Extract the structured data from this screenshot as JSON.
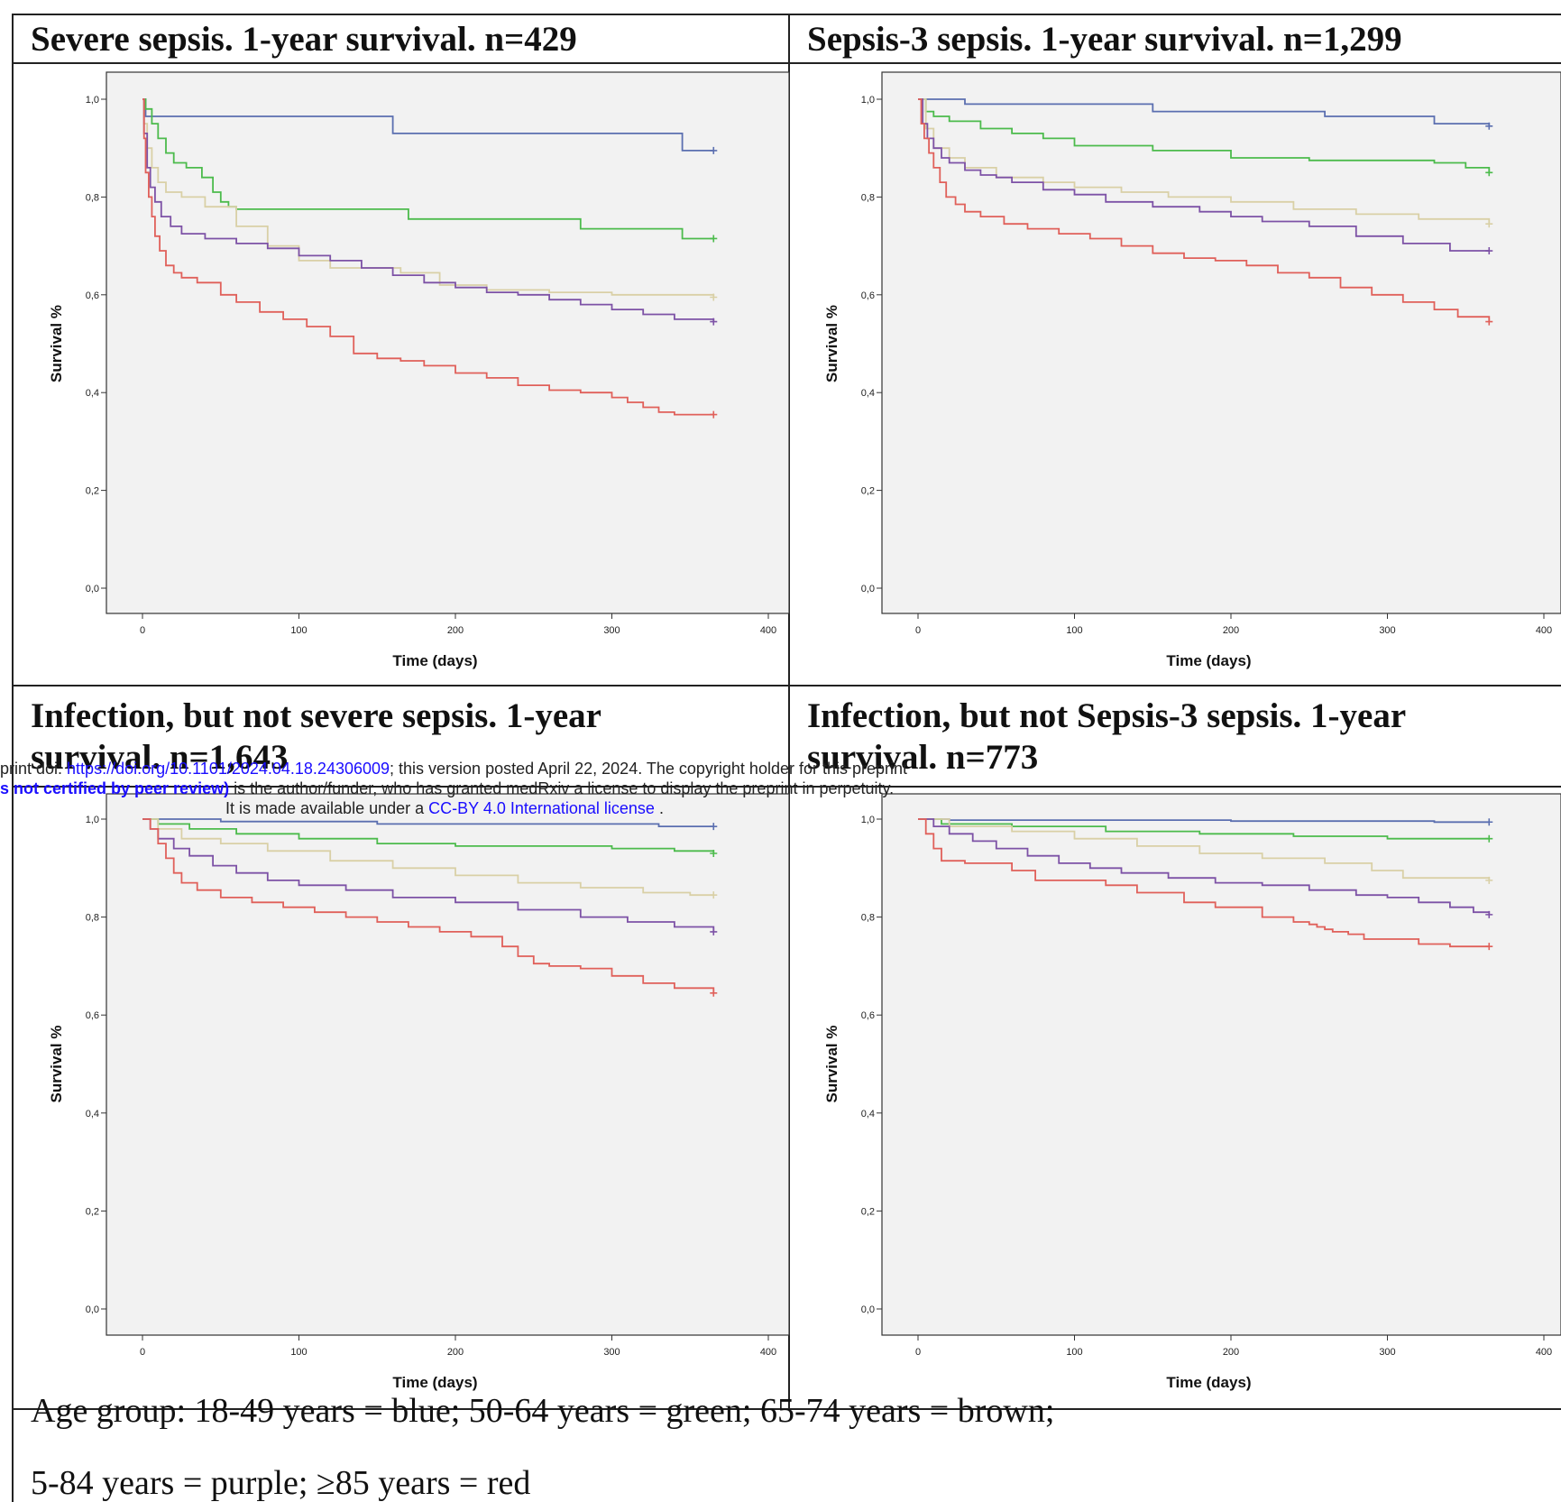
{
  "colors": {
    "blue": "#5b6fb0",
    "green": "#4cbb4c",
    "brown": "#d9d0a6",
    "purple": "#7d52a6",
    "red": "#e0605a",
    "panel_bg": "#f2f2f2"
  },
  "caption": {
    "line1": "Age group: 18-49 years = blue; 50-64 years = green; 65-74 years = brown;",
    "line2": "5-84 years = purple; ≥85 years = red"
  },
  "preprint_notice": {
    "line1_prefix": "print doi: ",
    "doi_link": "https://doi.org/10.1101/2024.04.18.24306009",
    "line1_suffix": "; this version posted April 22, 2024. The copyright holder for this preprint",
    "line2_bold": "s not certified by peer review)",
    "line2_suffix": " is the author/funder, who has granted medRxiv a license to display the preprint in perpetuity.",
    "line3_prefix": "It is made available under a ",
    "license_link": "CC-BY 4.0 International license",
    "line3_suffix": " ."
  },
  "chart_data": [
    {
      "type": "line",
      "title": "Severe sepsis. 1-year survival. n=429",
      "xlabel": "Time (days)",
      "ylabel": "Survival %",
      "xlim": [
        0,
        400
      ],
      "ylim": [
        0,
        1
      ],
      "xticks": [
        "0",
        "100",
        "200",
        "300",
        "400"
      ],
      "yticks": [
        "0,0",
        "0,2",
        "0,4",
        "0,6",
        "0,8",
        "1,0"
      ],
      "step": true,
      "series": [
        {
          "color": "blue",
          "x": [
            0,
            2,
            160,
            345,
            365
          ],
          "y": [
            1.0,
            0.965,
            0.93,
            0.895,
            0.895
          ]
        },
        {
          "color": "green",
          "x": [
            0,
            2,
            6,
            10,
            15,
            20,
            28,
            38,
            45,
            50,
            55,
            60,
            170,
            280,
            345,
            365
          ],
          "y": [
            1.0,
            0.98,
            0.95,
            0.92,
            0.89,
            0.87,
            0.86,
            0.84,
            0.81,
            0.79,
            0.78,
            0.775,
            0.755,
            0.735,
            0.715,
            0.715
          ]
        },
        {
          "color": "brown",
          "x": [
            0,
            1,
            3,
            6,
            10,
            15,
            25,
            40,
            60,
            80,
            100,
            120,
            140,
            165,
            190,
            220,
            260,
            300,
            365
          ],
          "y": [
            1.0,
            0.95,
            0.9,
            0.86,
            0.83,
            0.81,
            0.8,
            0.78,
            0.74,
            0.7,
            0.67,
            0.655,
            0.655,
            0.645,
            0.62,
            0.61,
            0.605,
            0.6,
            0.595
          ]
        },
        {
          "color": "purple",
          "x": [
            0,
            1,
            3,
            5,
            8,
            12,
            18,
            25,
            40,
            60,
            80,
            100,
            120,
            140,
            160,
            180,
            200,
            220,
            240,
            260,
            280,
            300,
            320,
            340,
            365
          ],
          "y": [
            1.0,
            0.93,
            0.86,
            0.82,
            0.79,
            0.76,
            0.74,
            0.725,
            0.715,
            0.705,
            0.695,
            0.68,
            0.67,
            0.655,
            0.64,
            0.625,
            0.615,
            0.605,
            0.6,
            0.59,
            0.58,
            0.57,
            0.56,
            0.55,
            0.545
          ]
        },
        {
          "color": "red",
          "x": [
            0,
            1,
            2,
            4,
            6,
            8,
            11,
            15,
            20,
            25,
            35,
            50,
            60,
            75,
            90,
            105,
            120,
            135,
            150,
            165,
            180,
            200,
            220,
            240,
            260,
            280,
            300,
            310,
            320,
            330,
            340,
            365
          ],
          "y": [
            1.0,
            0.92,
            0.85,
            0.8,
            0.76,
            0.72,
            0.69,
            0.66,
            0.645,
            0.635,
            0.625,
            0.6,
            0.585,
            0.565,
            0.55,
            0.535,
            0.515,
            0.48,
            0.47,
            0.465,
            0.455,
            0.44,
            0.43,
            0.415,
            0.405,
            0.4,
            0.39,
            0.38,
            0.37,
            0.36,
            0.355,
            0.355
          ]
        }
      ]
    },
    {
      "type": "line",
      "title": "Sepsis-3 sepsis. 1-year survival. n=1,299",
      "xlabel": "Time (days)",
      "ylabel": "Survival %",
      "xlim": [
        0,
        400
      ],
      "ylim": [
        0,
        1
      ],
      "xticks": [
        "0",
        "100",
        "200",
        "300",
        "400"
      ],
      "yticks": [
        "0,0",
        "0,2",
        "0,4",
        "0,6",
        "0,8",
        "1,0"
      ],
      "step": true,
      "series": [
        {
          "color": "blue",
          "x": [
            0,
            30,
            150,
            260,
            330,
            365
          ],
          "y": [
            1.0,
            0.99,
            0.975,
            0.965,
            0.95,
            0.945
          ]
        },
        {
          "color": "green",
          "x": [
            0,
            5,
            10,
            20,
            40,
            60,
            80,
            100,
            150,
            200,
            250,
            300,
            330,
            350,
            365
          ],
          "y": [
            1.0,
            0.975,
            0.965,
            0.955,
            0.94,
            0.93,
            0.92,
            0.905,
            0.895,
            0.88,
            0.875,
            0.875,
            0.87,
            0.86,
            0.85
          ]
        },
        {
          "color": "brown",
          "x": [
            0,
            5,
            10,
            20,
            30,
            50,
            80,
            100,
            130,
            160,
            200,
            240,
            280,
            320,
            365
          ],
          "y": [
            1.0,
            0.94,
            0.9,
            0.88,
            0.86,
            0.84,
            0.83,
            0.82,
            0.81,
            0.8,
            0.79,
            0.775,
            0.765,
            0.755,
            0.745
          ]
        },
        {
          "color": "purple",
          "x": [
            0,
            3,
            6,
            10,
            15,
            20,
            30,
            40,
            50,
            60,
            80,
            100,
            120,
            150,
            180,
            200,
            220,
            250,
            280,
            310,
            340,
            365
          ],
          "y": [
            1.0,
            0.95,
            0.92,
            0.9,
            0.88,
            0.87,
            0.855,
            0.845,
            0.84,
            0.83,
            0.815,
            0.805,
            0.79,
            0.78,
            0.77,
            0.76,
            0.75,
            0.74,
            0.72,
            0.705,
            0.69,
            0.69
          ]
        },
        {
          "color": "red",
          "x": [
            0,
            2,
            4,
            7,
            10,
            14,
            18,
            24,
            30,
            40,
            55,
            70,
            90,
            110,
            130,
            150,
            170,
            190,
            210,
            230,
            250,
            270,
            290,
            310,
            330,
            345,
            365
          ],
          "y": [
            1.0,
            0.95,
            0.92,
            0.89,
            0.86,
            0.83,
            0.8,
            0.785,
            0.77,
            0.76,
            0.745,
            0.735,
            0.725,
            0.715,
            0.7,
            0.685,
            0.675,
            0.67,
            0.66,
            0.645,
            0.635,
            0.615,
            0.6,
            0.585,
            0.57,
            0.555,
            0.545
          ]
        }
      ]
    },
    {
      "type": "line",
      "title": "Infection, but not severe sepsis. 1-year survival. n=1,643",
      "xlabel": "Time (days)",
      "ylabel": "Survival %",
      "xlim": [
        0,
        400
      ],
      "ylim": [
        0,
        1
      ],
      "xticks": [
        "0",
        "100",
        "200",
        "300",
        "400"
      ],
      "yticks": [
        "0,0",
        "0,2",
        "0,4",
        "0,6",
        "0,8",
        "1,0"
      ],
      "step": true,
      "series": [
        {
          "color": "blue",
          "x": [
            0,
            50,
            150,
            250,
            330,
            365
          ],
          "y": [
            1.0,
            0.995,
            0.99,
            0.99,
            0.985,
            0.985
          ]
        },
        {
          "color": "green",
          "x": [
            0,
            10,
            30,
            60,
            100,
            150,
            200,
            250,
            300,
            340,
            365
          ],
          "y": [
            1.0,
            0.99,
            0.98,
            0.97,
            0.96,
            0.95,
            0.945,
            0.945,
            0.94,
            0.935,
            0.93
          ]
        },
        {
          "color": "brown",
          "x": [
            0,
            10,
            25,
            50,
            80,
            120,
            160,
            200,
            240,
            280,
            320,
            350,
            365
          ],
          "y": [
            1.0,
            0.98,
            0.96,
            0.95,
            0.935,
            0.915,
            0.9,
            0.885,
            0.87,
            0.86,
            0.85,
            0.845,
            0.845
          ]
        },
        {
          "color": "purple",
          "x": [
            0,
            5,
            10,
            20,
            30,
            45,
            60,
            80,
            100,
            130,
            160,
            200,
            240,
            280,
            310,
            340,
            365
          ],
          "y": [
            1.0,
            0.98,
            0.96,
            0.94,
            0.925,
            0.905,
            0.89,
            0.875,
            0.865,
            0.855,
            0.84,
            0.83,
            0.815,
            0.8,
            0.79,
            0.78,
            0.77
          ]
        },
        {
          "color": "red",
          "x": [
            0,
            5,
            10,
            15,
            20,
            25,
            35,
            50,
            70,
            90,
            110,
            130,
            150,
            170,
            190,
            210,
            230,
            240,
            250,
            260,
            280,
            300,
            320,
            340,
            365
          ],
          "y": [
            1.0,
            0.98,
            0.95,
            0.92,
            0.89,
            0.87,
            0.855,
            0.84,
            0.83,
            0.82,
            0.81,
            0.8,
            0.79,
            0.78,
            0.77,
            0.76,
            0.74,
            0.72,
            0.705,
            0.7,
            0.695,
            0.68,
            0.665,
            0.655,
            0.645
          ]
        }
      ]
    },
    {
      "type": "line",
      "title": "Infection, but not Sepsis-3 sepsis. 1-year survival. n=773",
      "xlabel": "Time (days)",
      "ylabel": "Survival %",
      "xlim": [
        0,
        400
      ],
      "ylim": [
        0,
        1
      ],
      "xticks": [
        "0",
        "100",
        "200",
        "300",
        "400"
      ],
      "yticks": [
        "0,0",
        "0,2",
        "0,4",
        "0,6",
        "0,8",
        "1,0"
      ],
      "step": true,
      "series": [
        {
          "color": "blue",
          "x": [
            0,
            20,
            200,
            330,
            365
          ],
          "y": [
            1.0,
            0.998,
            0.996,
            0.994,
            0.994
          ]
        },
        {
          "color": "green",
          "x": [
            0,
            15,
            60,
            120,
            180,
            240,
            300,
            365
          ],
          "y": [
            1.0,
            0.99,
            0.985,
            0.975,
            0.97,
            0.965,
            0.96,
            0.96
          ]
        },
        {
          "color": "brown",
          "x": [
            0,
            20,
            60,
            100,
            140,
            180,
            220,
            260,
            290,
            310,
            365
          ],
          "y": [
            1.0,
            0.985,
            0.975,
            0.96,
            0.945,
            0.93,
            0.92,
            0.91,
            0.895,
            0.88,
            0.875
          ]
        },
        {
          "color": "purple",
          "x": [
            0,
            10,
            20,
            35,
            50,
            70,
            90,
            110,
            130,
            160,
            190,
            220,
            250,
            280,
            300,
            320,
            340,
            355,
            365
          ],
          "y": [
            1.0,
            0.985,
            0.97,
            0.955,
            0.94,
            0.925,
            0.91,
            0.9,
            0.89,
            0.88,
            0.87,
            0.865,
            0.855,
            0.845,
            0.84,
            0.83,
            0.82,
            0.81,
            0.805
          ]
        },
        {
          "color": "red",
          "x": [
            0,
            5,
            10,
            15,
            30,
            60,
            75,
            120,
            140,
            170,
            190,
            220,
            240,
            250,
            255,
            260,
            265,
            275,
            285,
            320,
            340,
            365
          ],
          "y": [
            1.0,
            0.97,
            0.94,
            0.915,
            0.91,
            0.895,
            0.875,
            0.865,
            0.85,
            0.83,
            0.82,
            0.8,
            0.79,
            0.785,
            0.78,
            0.775,
            0.77,
            0.765,
            0.755,
            0.745,
            0.74,
            0.74
          ]
        }
      ]
    }
  ]
}
